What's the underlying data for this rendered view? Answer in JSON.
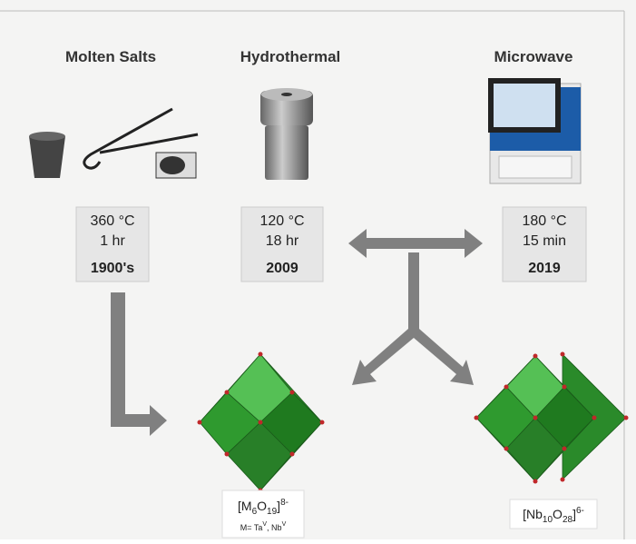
{
  "methods": [
    {
      "title": "Molten Salts",
      "temperature": "360 °C",
      "time": "1 hr",
      "year": "1900's"
    },
    {
      "title": "Hydrothermal",
      "temperature": "120 °C",
      "time": "18 hr",
      "year": "2009"
    },
    {
      "title": "Microwave",
      "temperature": "180 °C",
      "time": "15 min",
      "year": "2019"
    }
  ],
  "products": [
    {
      "parts": [
        "[M",
        "6",
        "O",
        "19",
        "]",
        "8-"
      ],
      "note": [
        "M= Ta",
        "V",
        ", Nb",
        "V"
      ]
    },
    {
      "parts": [
        "[Nb",
        "10",
        "O",
        "28",
        "]",
        "6-"
      ]
    }
  ]
}
